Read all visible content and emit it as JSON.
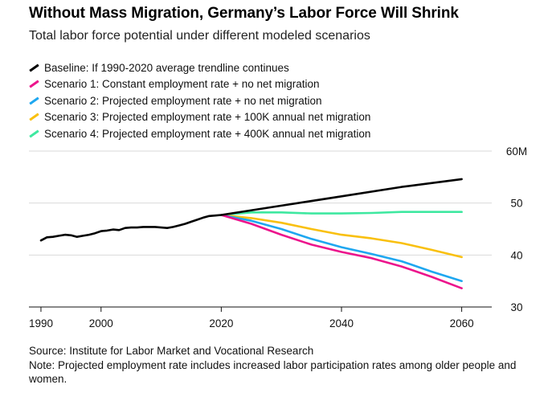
{
  "header": {
    "title": "Without Mass Migration, Germany’s Labor Force Will Shrink",
    "subtitle": "Total labor force potential under different modeled scenarios"
  },
  "legend": [
    {
      "label": "Baseline: If 1990-2020 average trendline continues",
      "color": "#000000"
    },
    {
      "label": "Scenario 1: Constant employment rate + no net migration",
      "color": "#ec148c"
    },
    {
      "label": "Scenario 2: Projected employment rate + no net migration",
      "color": "#1ea7f0"
    },
    {
      "label": "Scenario 3: Projected employment rate + 100K annual net migration",
      "color": "#f9c00f"
    },
    {
      "label": "Scenario 4: Projected employment rate + 400K annual net migration",
      "color": "#3ee8a0"
    }
  ],
  "footer": {
    "source": "Source: Institute for Labor Market and Vocational Research",
    "note": "Note: Projected employment rate includes increased labor participation rates among older people and women."
  },
  "chart_data": {
    "type": "line",
    "title": "Without Mass Migration, Germany’s Labor Force Will Shrink",
    "subtitle": "Total labor force potential under different modeled scenarios",
    "xlabel": "",
    "ylabel": "",
    "xlim": [
      1988,
      2065
    ],
    "ylim": [
      30,
      60
    ],
    "x_ticks": [
      "1990",
      "2000",
      "2020",
      "2040",
      "2060"
    ],
    "x_tick_values": [
      1990,
      2000,
      2020,
      2040,
      2060
    ],
    "y_ticks": [
      "30",
      "40",
      "50",
      "60M"
    ],
    "y_tick_values": [
      30,
      40,
      50,
      60
    ],
    "grid": true,
    "legend_position": "top-left",
    "series": [
      {
        "name": "Baseline: If 1990-2020 average trendline continues",
        "color": "#000000",
        "points": [
          [
            1990,
            42.8
          ],
          [
            1991,
            43.4
          ],
          [
            1992,
            43.5
          ],
          [
            1993,
            43.7
          ],
          [
            1994,
            43.9
          ],
          [
            1995,
            43.8
          ],
          [
            1996,
            43.5
          ],
          [
            1997,
            43.7
          ],
          [
            1998,
            43.9
          ],
          [
            1999,
            44.2
          ],
          [
            2000,
            44.6
          ],
          [
            2001,
            44.7
          ],
          [
            2002,
            44.9
          ],
          [
            2003,
            44.8
          ],
          [
            2004,
            45.2
          ],
          [
            2005,
            45.3
          ],
          [
            2006,
            45.3
          ],
          [
            2007,
            45.4
          ],
          [
            2008,
            45.4
          ],
          [
            2009,
            45.4
          ],
          [
            2010,
            45.3
          ],
          [
            2011,
            45.2
          ],
          [
            2012,
            45.4
          ],
          [
            2013,
            45.7
          ],
          [
            2014,
            46.0
          ],
          [
            2015,
            46.4
          ],
          [
            2016,
            46.8
          ],
          [
            2017,
            47.2
          ],
          [
            2018,
            47.5
          ],
          [
            2019,
            47.6
          ],
          [
            2020,
            47.7
          ],
          [
            2030,
            49.5
          ],
          [
            2040,
            51.3
          ],
          [
            2050,
            53.1
          ],
          [
            2060,
            54.6
          ]
        ]
      },
      {
        "name": "Scenario 1: Constant employment rate + no net migration",
        "color": "#ec148c",
        "points": [
          [
            2020,
            47.7
          ],
          [
            2025,
            46.0
          ],
          [
            2030,
            43.9
          ],
          [
            2035,
            42.0
          ],
          [
            2040,
            40.6
          ],
          [
            2045,
            39.4
          ],
          [
            2050,
            37.8
          ],
          [
            2055,
            35.8
          ],
          [
            2060,
            33.6
          ]
        ]
      },
      {
        "name": "Scenario 2: Projected employment rate + no net migration",
        "color": "#1ea7f0",
        "points": [
          [
            2020,
            47.7
          ],
          [
            2025,
            46.6
          ],
          [
            2030,
            45.0
          ],
          [
            2035,
            43.1
          ],
          [
            2040,
            41.5
          ],
          [
            2045,
            40.2
          ],
          [
            2050,
            38.8
          ],
          [
            2055,
            36.8
          ],
          [
            2060,
            35.0
          ]
        ]
      },
      {
        "name": "Scenario 3: Projected employment rate + 100K annual net migration",
        "color": "#f9c00f",
        "points": [
          [
            2020,
            47.7
          ],
          [
            2025,
            47.1
          ],
          [
            2030,
            46.2
          ],
          [
            2035,
            45.0
          ],
          [
            2040,
            43.9
          ],
          [
            2045,
            43.2
          ],
          [
            2050,
            42.3
          ],
          [
            2055,
            41.0
          ],
          [
            2060,
            39.6
          ]
        ]
      },
      {
        "name": "Scenario 4: Projected employment rate + 400K annual net migration",
        "color": "#3ee8a0",
        "points": [
          [
            2020,
            47.7
          ],
          [
            2025,
            48.2
          ],
          [
            2030,
            48.2
          ],
          [
            2035,
            48.0
          ],
          [
            2040,
            48.0
          ],
          [
            2045,
            48.1
          ],
          [
            2050,
            48.3
          ],
          [
            2055,
            48.3
          ],
          [
            2060,
            48.3
          ]
        ]
      }
    ]
  }
}
